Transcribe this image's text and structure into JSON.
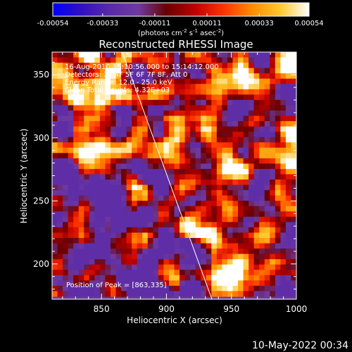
{
  "chart_data": {
    "type": "heatmap",
    "title": "Reconstructed RHESSI Image",
    "xlabel": "Heliocentric X (arcsec)",
    "ylabel": "Heliocentric Y (arcsec)",
    "xlim": [
      812,
      1000
    ],
    "ylim": [
      172,
      368
    ],
    "xticks": [
      "850",
      "900",
      "950",
      "1000"
    ],
    "yticks": [
      "200",
      "250",
      "300",
      "350"
    ],
    "colorbar": {
      "range": [
        -0.00054,
        0.00054
      ],
      "ticks": [
        "-0.00054",
        "-0.00033",
        "-0.00011",
        "0.00011",
        "0.00033",
        "0.00054"
      ],
      "unit_parts": [
        "(photons cm",
        "-2",
        " s",
        "-1",
        " asec",
        "-2",
        ")"
      ],
      "colors": [
        "#0000ff",
        "#3010c0",
        "#5a2aa8",
        "#6e3aa0",
        "#6a0000",
        "#c00000",
        "#ff3300",
        "#ff8c00",
        "#ffc830",
        "#ffffff"
      ]
    },
    "annotations": [
      "16-Aug-2010 15:10:56.000 to 15:14:12.000",
      "Detectors: 3F 4F 5F 6F 7F 8F, Att 0",
      "Energy Range: 12.0 - 25.0 keV",
      "Clean     Total Counts: 4.32E+03"
    ],
    "peak_label": "Position of Peak = [863,335]",
    "limb": {
      "x": [
        866,
        935
      ],
      "y": [
        368,
        172
      ]
    }
  },
  "footer": {
    "date": "10-May-2022 00:34"
  }
}
